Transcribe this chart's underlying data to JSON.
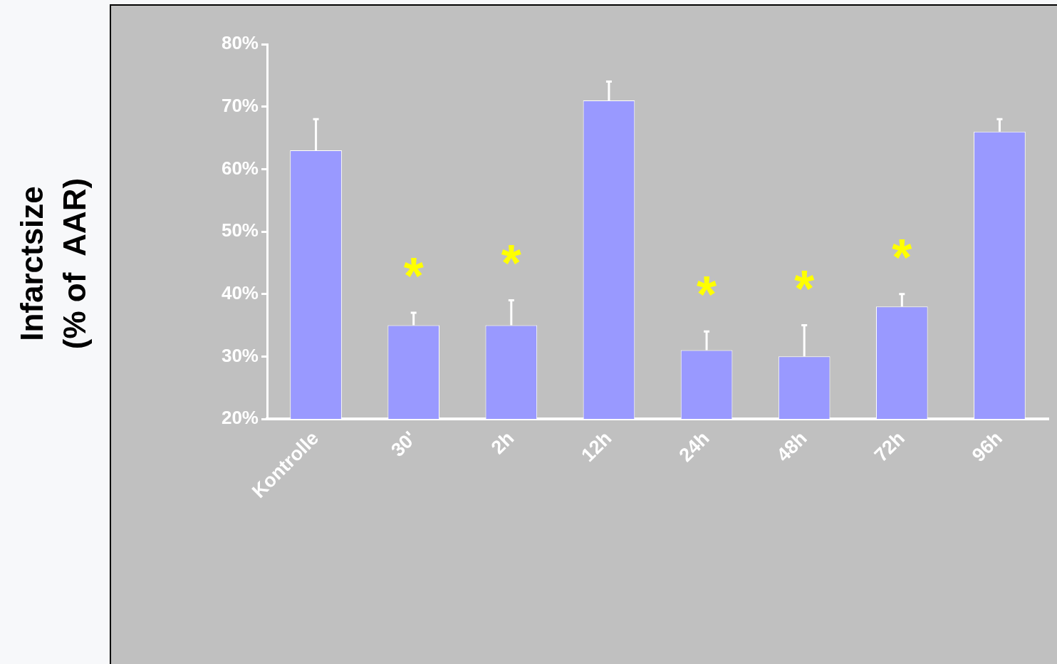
{
  "chart_data": {
    "type": "bar",
    "ylabel": "Infarctsize\n(% of  AAR)",
    "categories": [
      "Kontrolle",
      "30'",
      "2h",
      "12h",
      "24h",
      "48h",
      "72h",
      "96h"
    ],
    "values": [
      63,
      35,
      35,
      71,
      31,
      30,
      38,
      66
    ],
    "errors": [
      [
        63,
        68
      ],
      [
        35,
        37
      ],
      [
        35,
        39
      ],
      [
        71,
        74
      ],
      [
        31,
        34
      ],
      [
        30,
        35
      ],
      [
        38,
        40
      ],
      [
        66,
        68
      ]
    ],
    "color": "#9999ff",
    "ylim": [
      20,
      80
    ],
    "yticks": [
      {
        "value": 20,
        "label": "20%"
      },
      {
        "value": 30,
        "label": "30%"
      },
      {
        "value": 40,
        "label": "40%"
      },
      {
        "value": 50,
        "label": "50%"
      },
      {
        "value": 60,
        "label": "60%"
      },
      {
        "value": 70,
        "label": "70%"
      },
      {
        "value": 80,
        "label": "80%"
      }
    ],
    "grid": false,
    "legend": false,
    "value_labels": [
      null,
      "*",
      "*",
      null,
      "*",
      "*",
      "*",
      null
    ]
  }
}
